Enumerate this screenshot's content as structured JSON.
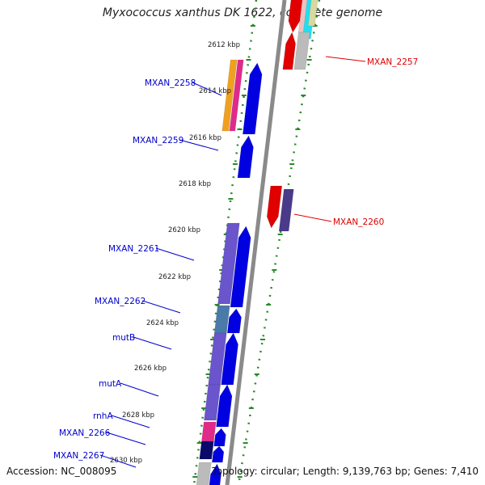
{
  "title": "Myxococcus xanthus DK 1622, complete genome",
  "accession": "Accession: NC_008095",
  "topology": "Topology: circular; Length: 9,139,763 bp; Genes: 7,410",
  "colors": {
    "backbone": "#8a8a8a",
    "tick_dots": "#2a8a2a",
    "gene_blue": "#0000e0",
    "gene_red": "#e00000",
    "label_blue": "#0000cc",
    "label_red": "#dd0000",
    "purple": "#6a55cc",
    "dark_purple": "#4a3a8a",
    "steel_blue": "#4a7aaa",
    "orange": "#f0a020",
    "pink": "#e02a8a",
    "navy": "#0a0a6a",
    "grey": "#bbbbbb",
    "cyan": "#20e0f0"
  },
  "scale_ticks": [
    "2612 kbp",
    "2614 kbp",
    "2616 kbp",
    "2618 kbp",
    "2620 kbp",
    "2622 kbp",
    "2624 kbp",
    "2626 kbp",
    "2628 kbp",
    "2630 kbp"
  ],
  "left_labels": [
    "MXAN_2258",
    "MXAN_2259",
    "MXAN_2261",
    "MXAN_2262",
    "mutB",
    "mutA",
    "rnhA",
    "MXAN_2266",
    "MXAN_2267"
  ],
  "right_labels": [
    "MXAN_2257",
    "MXAN_2260"
  ]
}
